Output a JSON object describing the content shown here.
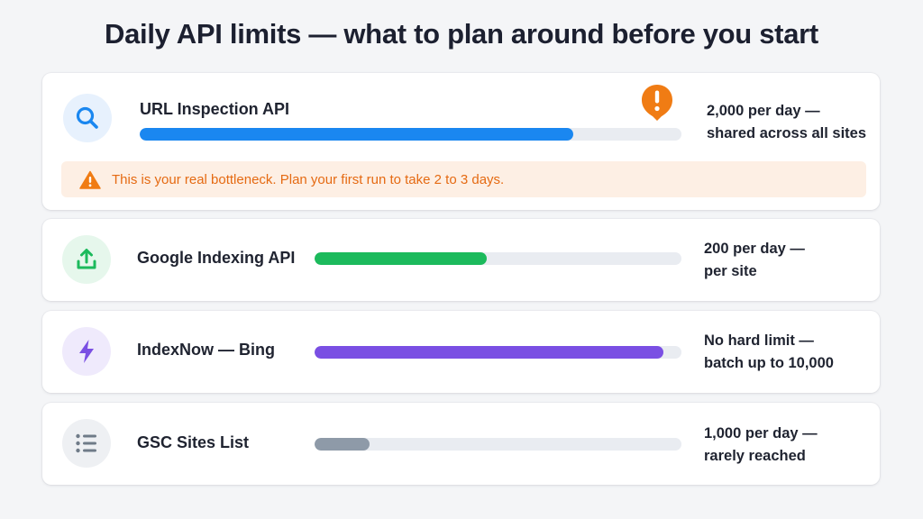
{
  "page_title": "Daily API limits — what to plan around before you start",
  "apis": [
    {
      "name": "URL Inspection API",
      "icon": "search-icon",
      "limit_line1": "2,000 per day —",
      "limit_line2": "shared across all sites",
      "usage_fraction": 0.8,
      "bar_color": "#1a87f0",
      "icon_bg": "#e7f1fd",
      "icon_color": "#1a87f0",
      "alert_icon": "alert-pin-icon",
      "warning": "This is your real bottleneck. Plan your first run to take 2 to 3 days."
    },
    {
      "name": "Google Indexing API",
      "icon": "upload-icon",
      "limit_line1": "200 per day —",
      "limit_line2": "per site",
      "usage_fraction": 0.47,
      "bar_color": "#1cba5c",
      "icon_bg": "#e6f7ec",
      "icon_color": "#1cba5c"
    },
    {
      "name": "IndexNow — Bing",
      "icon": "lightning-bolt-icon",
      "limit_line1": "No hard limit —",
      "limit_line2": "batch up to 10,000",
      "usage_fraction": 0.95,
      "bar_color": "#7a4fe3",
      "icon_bg": "#efeafc",
      "icon_color": "#7a4fe3"
    },
    {
      "name": "GSC Sites List",
      "icon": "list-icon",
      "limit_line1": "1,000 per day —",
      "limit_line2": "rarely reached",
      "usage_fraction": 0.15,
      "bar_color": "#8e9aa8",
      "icon_bg": "#eef0f3",
      "icon_color": "#6f7b88"
    }
  ],
  "colors": {
    "warning_accent": "#f07c14",
    "warning_bg": "#fdefe4",
    "bar_track": "#e9ecf1"
  }
}
